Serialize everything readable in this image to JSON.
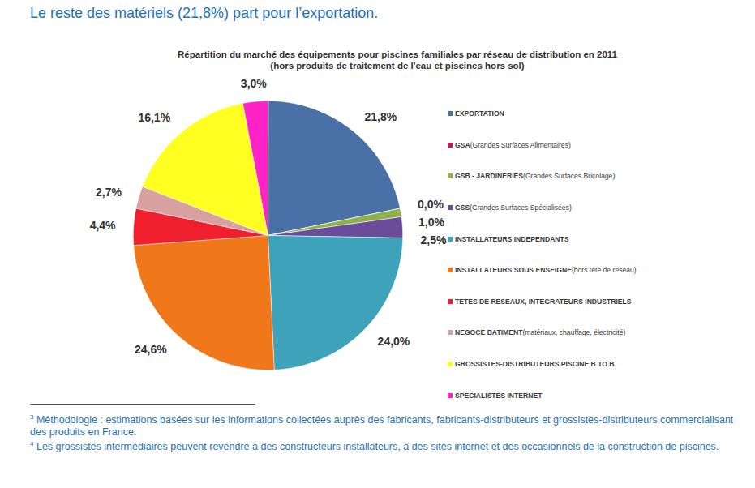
{
  "page": {
    "heading": "Le reste des matériels (21,8%) part pour l’exportation.",
    "footnotes": [
      {
        "mark": "3",
        "text": "Méthodologie : estimations basées sur les informations collectées auprès des fabricants, fabricants-distributeurs et grossistes-distributeurs commercialisant des produits en France."
      },
      {
        "mark": "4",
        "text": "Les grossistes intermédiaires peuvent revendre à des constructeurs installateurs, à des sites internet et des occasionnels de la construction de piscines."
      }
    ]
  },
  "chart_data": {
    "type": "pie",
    "title": "Répartition du marché des équipements pour piscines familiales par réseau de distribution en 2011",
    "subtitle": "(hors produits de traitement de l'eau et piscines hors sol)",
    "categories": [
      "EXPORTATION",
      "GSA (Grandes Surfaces Alimentaires)",
      "GSB - JARDINERIES (Grandes Surfaces Bricolage)",
      "GSS (Grandes Surfaces Spécialisées)",
      "INSTALLATEURS INDEPENDANTS",
      "INSTALLATEURS SOUS ENSEIGNE (hors tete de reseau)",
      "TETES DE RESEAUX, INTEGRATEURS INDUSTRIELS",
      "NEGOCE BATIMENT (matériaux, chauffage, électricité)",
      "GROSSISTES-DISTRIBUTEURS PISCINE B TO B",
      "SPECIALISTES INTERNET"
    ],
    "values": [
      21.8,
      0.0,
      1.0,
      2.5,
      24.0,
      24.6,
      4.4,
      2.7,
      16.1,
      3.0
    ],
    "value_labels": [
      "21,8%",
      "0,0%",
      "1,0%",
      "2,5%",
      "24,0%",
      "24,6%",
      "4,4%",
      "2,7%",
      "16,1%",
      "3,0%"
    ],
    "colors": [
      "#4a70a8",
      "#c2184e",
      "#90b04c",
      "#6b4c9a",
      "#3ea2ba",
      "#f0781a",
      "#f01f2e",
      "#d9a0a0",
      "#ffff22",
      "#ff22c4"
    ],
    "data_labels": true,
    "legend": "right"
  }
}
